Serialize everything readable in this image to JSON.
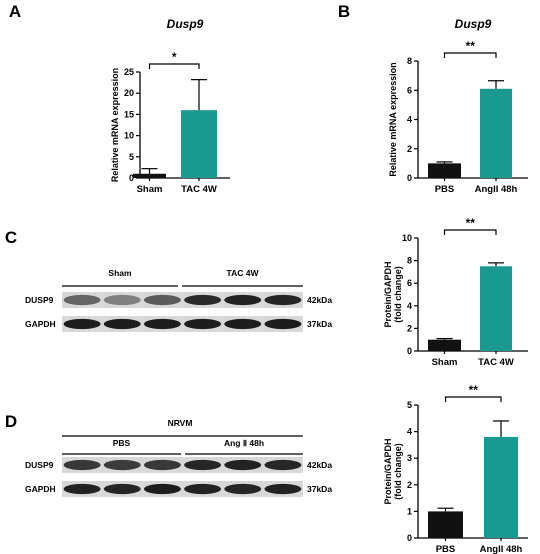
{
  "colors": {
    "control": "#111111",
    "treated": "#1a9990",
    "axis": "#000000"
  },
  "blots": [
    {
      "panel": "C",
      "header": null,
      "groups": [
        "Sham",
        "TAC 4W"
      ],
      "rows": [
        {
          "name": "DUSP9",
          "kda": "42kDa",
          "intensities": [
            0.55,
            0.4,
            0.6,
            0.88,
            0.92,
            0.9
          ]
        },
        {
          "name": "GAPDH",
          "kda": "37kDa",
          "intensities": [
            0.95,
            0.95,
            0.95,
            0.95,
            0.95,
            0.95
          ]
        }
      ]
    },
    {
      "panel": "D",
      "header": "NRVM",
      "groups": [
        "PBS",
        "Ang Ⅱ 48h"
      ],
      "rows": [
        {
          "name": "DUSP9",
          "kda": "42kDa",
          "intensities": [
            0.8,
            0.78,
            0.8,
            0.9,
            0.92,
            0.9
          ]
        },
        {
          "name": "GAPDH",
          "kda": "37kDa",
          "intensities": [
            0.92,
            0.9,
            0.95,
            0.92,
            0.9,
            0.92
          ]
        }
      ]
    }
  ],
  "chart_data": [
    {
      "panel": "A",
      "type": "bar",
      "title": "Dusp9",
      "xlabel": "",
      "ylabel": "Relative mRNA expression",
      "categories": [
        "Sham",
        "TAC 4W"
      ],
      "values": [
        1,
        16
      ],
      "errors": [
        1.2,
        7.2
      ],
      "ylim": [
        0,
        25
      ],
      "yticks": [
        0,
        5,
        10,
        15,
        20,
        25
      ],
      "significance": "*"
    },
    {
      "panel": "B",
      "type": "bar",
      "title": "Dusp9",
      "xlabel": "",
      "ylabel": "Relative mRNA expression",
      "categories": [
        "PBS",
        "AngII 48h"
      ],
      "values": [
        1,
        6.1
      ],
      "errors": [
        0.1,
        0.55
      ],
      "ylim": [
        0,
        8
      ],
      "yticks": [
        0,
        2,
        4,
        6,
        8
      ],
      "significance": "**"
    },
    {
      "panel": "C",
      "type": "bar",
      "title": "",
      "xlabel": "",
      "ylabel": "Protein/GAPDH (fold change)",
      "categories": [
        "Sham",
        "TAC 4W"
      ],
      "values": [
        1,
        7.5
      ],
      "errors": [
        0.1,
        0.3
      ],
      "ylim": [
        0,
        10
      ],
      "yticks": [
        0,
        2,
        4,
        6,
        8,
        10
      ],
      "significance": "**"
    },
    {
      "panel": "D",
      "type": "bar",
      "title": "",
      "xlabel": "",
      "ylabel": "Protein/GAPDH (fold change)",
      "categories": [
        "PBS",
        "AngII 48h"
      ],
      "values": [
        1,
        3.8
      ],
      "errors": [
        0.12,
        0.6
      ],
      "ylim": [
        0,
        5
      ],
      "yticks": [
        0,
        1,
        2,
        3,
        4,
        5
      ],
      "significance": "**"
    }
  ]
}
